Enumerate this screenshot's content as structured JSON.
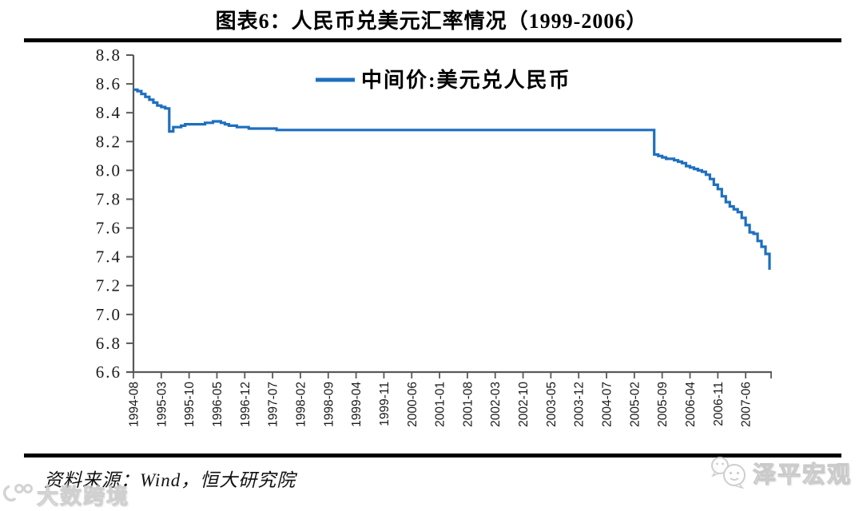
{
  "title": "图表6：人民币兑美元汇率情况（1999-2006）",
  "source": "资料来源：Wind，恒大研究院",
  "watermarks": {
    "bottom_left": "大数跨境",
    "bottom_right": "泽平宏观"
  },
  "colors": {
    "line": "#1e6fbf",
    "axis": "#595959",
    "tick_label": "#1a1a1a",
    "rule": "#000000",
    "watermark": "#c8c8c8"
  },
  "chart_data": {
    "type": "line",
    "title": "图表6：人民币兑美元汇率情况（1999-2006）",
    "legend": [
      {
        "name": "中间价:美元兑人民币",
        "color": "#1e6fbf"
      }
    ],
    "legend_position": "top-center-inside",
    "grid": false,
    "ylim": [
      6.6,
      8.8
    ],
    "y_tick_labels": [
      "8.8",
      "8.6",
      "8.4",
      "8.2",
      "8.0",
      "7.8",
      "7.6",
      "7.4",
      "7.2",
      "7.0",
      "6.8",
      "6.6"
    ],
    "x_start": "1994-08",
    "x_end": "2007-12",
    "x_tick_interval_months": 7,
    "x_tick_labels": [
      "1994-08",
      "1995-03",
      "1995-10",
      "1996-05",
      "1996-12",
      "1997-07",
      "1998-02",
      "1998-09",
      "1999-04",
      "1999-11",
      "2000-06",
      "2001-01",
      "2001-08",
      "2002-03",
      "2002-10",
      "2003-05",
      "2003-12",
      "2004-07",
      "2005-02",
      "2005-09",
      "2006-04",
      "2006-11",
      "2007-06"
    ],
    "series": [
      {
        "name": "中间价:美元兑人民币",
        "color": "#1e6fbf",
        "frequency": "monthly",
        "values": [
          8.56,
          8.55,
          8.53,
          8.51,
          8.49,
          8.47,
          8.45,
          8.44,
          8.43,
          8.27,
          8.3,
          8.3,
          8.31,
          8.32,
          8.32,
          8.32,
          8.32,
          8.32,
          8.33,
          8.33,
          8.34,
          8.34,
          8.33,
          8.32,
          8.31,
          8.31,
          8.3,
          8.3,
          8.3,
          8.29,
          8.29,
          8.29,
          8.29,
          8.29,
          8.29,
          8.29,
          8.28,
          8.28,
          8.28,
          8.28,
          8.28,
          8.28,
          8.28,
          8.28,
          8.28,
          8.28,
          8.28,
          8.28,
          8.28,
          8.28,
          8.28,
          8.28,
          8.28,
          8.28,
          8.28,
          8.28,
          8.28,
          8.28,
          8.28,
          8.28,
          8.28,
          8.28,
          8.28,
          8.28,
          8.28,
          8.28,
          8.28,
          8.28,
          8.28,
          8.28,
          8.28,
          8.28,
          8.28,
          8.28,
          8.28,
          8.28,
          8.28,
          8.28,
          8.28,
          8.28,
          8.28,
          8.28,
          8.28,
          8.28,
          8.28,
          8.28,
          8.28,
          8.28,
          8.28,
          8.28,
          8.28,
          8.28,
          8.28,
          8.28,
          8.28,
          8.28,
          8.28,
          8.28,
          8.28,
          8.28,
          8.28,
          8.28,
          8.28,
          8.28,
          8.28,
          8.28,
          8.28,
          8.28,
          8.28,
          8.28,
          8.28,
          8.28,
          8.28,
          8.28,
          8.28,
          8.28,
          8.28,
          8.28,
          8.28,
          8.28,
          8.28,
          8.28,
          8.28,
          8.28,
          8.28,
          8.28,
          8.28,
          8.28,
          8.28,
          8.28,
          8.28,
          8.11,
          8.1,
          8.09,
          8.08,
          8.08,
          8.07,
          8.06,
          8.05,
          8.03,
          8.02,
          8.01,
          8.0,
          7.99,
          7.97,
          7.94,
          7.9,
          7.87,
          7.82,
          7.78,
          7.75,
          7.73,
          7.71,
          7.67,
          7.62,
          7.57,
          7.56,
          7.51,
          7.47,
          7.42,
          7.31
        ]
      }
    ]
  }
}
